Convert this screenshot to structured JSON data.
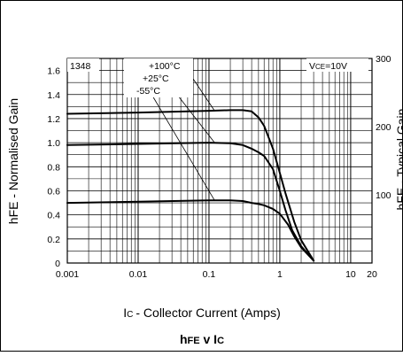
{
  "chart_data": {
    "type": "line",
    "title": "hFE v IC",
    "title_parts": {
      "main": "h",
      "sub": "FE",
      "mid": " v I",
      "tail": "C"
    },
    "part_number": "1348",
    "condition": {
      "sym": "V",
      "sub": "CE",
      "val": "=10V"
    },
    "xlabel": {
      "sym": "I",
      "sub": "C",
      "text": "- Collector Current (Amps)"
    },
    "ylabel": "hFE - Normalised Gain",
    "y2label": "hFE - Typical Gain",
    "x_scale": "log",
    "xlim": [
      0.001,
      20
    ],
    "ylim": [
      0,
      1.7
    ],
    "y2lim": [
      0,
      300
    ],
    "x_tick_values": [
      0.001,
      0.01,
      0.1,
      1,
      10,
      20
    ],
    "x_tick_labels": [
      "0.001",
      "0.01",
      "0.1",
      "1",
      "10",
      "20"
    ],
    "y_tick_values": [
      0,
      0.2,
      0.4,
      0.6,
      0.8,
      1.0,
      1.2,
      1.4,
      1.6
    ],
    "y_tick_labels": [
      "0",
      "0.2",
      "0.4",
      "0.6",
      "0.8",
      "1.0",
      "1.2",
      "1.4",
      "1.6"
    ],
    "y2_tick_values": [
      100,
      200,
      300
    ],
    "y2_tick_labels": [
      "100",
      "200",
      "300"
    ],
    "grid": true,
    "series": [
      {
        "name": "+100°C",
        "x": [
          0.001,
          0.01,
          0.05,
          0.1,
          0.2,
          0.3,
          0.4,
          0.5,
          0.6,
          0.8,
          1.0,
          1.2,
          1.6,
          2.0,
          3.0
        ],
        "y": [
          1.24,
          1.25,
          1.26,
          1.265,
          1.27,
          1.27,
          1.26,
          1.21,
          1.14,
          0.95,
          0.75,
          0.58,
          0.34,
          0.19,
          0.02
        ]
      },
      {
        "name": "+25°C",
        "x": [
          0.001,
          0.01,
          0.1,
          0.2,
          0.3,
          0.4,
          0.5,
          0.6,
          0.8,
          1.0,
          1.2,
          1.5,
          2.0,
          3.0
        ],
        "y": [
          0.98,
          0.99,
          1.0,
          0.995,
          0.98,
          0.95,
          0.92,
          0.89,
          0.78,
          0.6,
          0.44,
          0.27,
          0.14,
          0.02
        ]
      },
      {
        "name": "-55°C",
        "x": [
          0.001,
          0.01,
          0.1,
          0.2,
          0.3,
          0.4,
          0.5,
          0.6,
          0.8,
          1.0,
          1.3,
          1.6,
          2.0,
          3.0
        ],
        "y": [
          0.5,
          0.51,
          0.52,
          0.52,
          0.515,
          0.5,
          0.49,
          0.48,
          0.45,
          0.41,
          0.32,
          0.22,
          0.13,
          0.02
        ]
      }
    ]
  }
}
